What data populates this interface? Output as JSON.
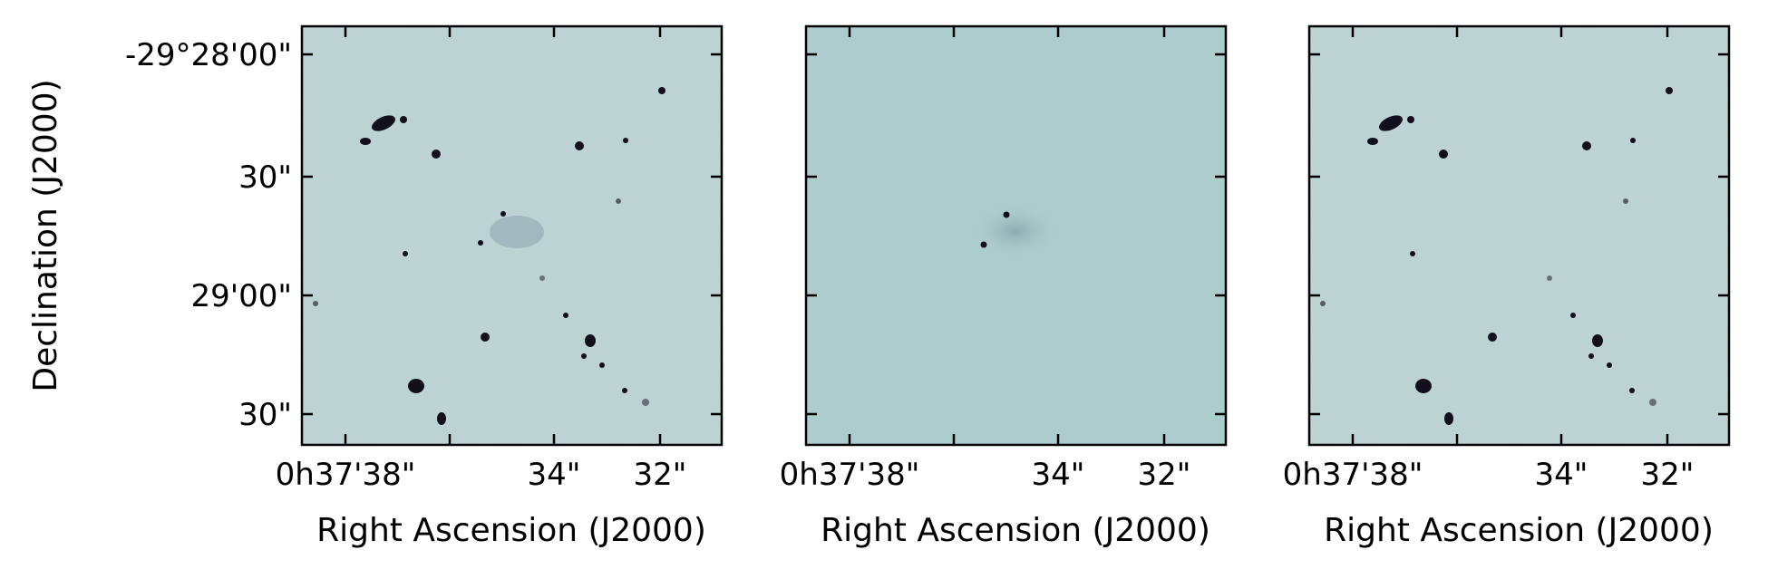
{
  "figure": {
    "y_axis_label": "Declination (J2000)",
    "x_axis_label": "Right Ascension (J2000)",
    "y_ticks": [
      "-29°28'00\"",
      "30\"",
      "29'00\"",
      "30\""
    ],
    "x_ticks": [
      "0h37'38\"",
      "34\"",
      "32\""
    ]
  },
  "panels": [
    {
      "kind": "observed image"
    },
    {
      "kind": "model image"
    },
    {
      "kind": "residual image"
    }
  ],
  "colors": {
    "background": "#b9cfd0",
    "model_background": "#adcccd",
    "source": "#12101c"
  }
}
